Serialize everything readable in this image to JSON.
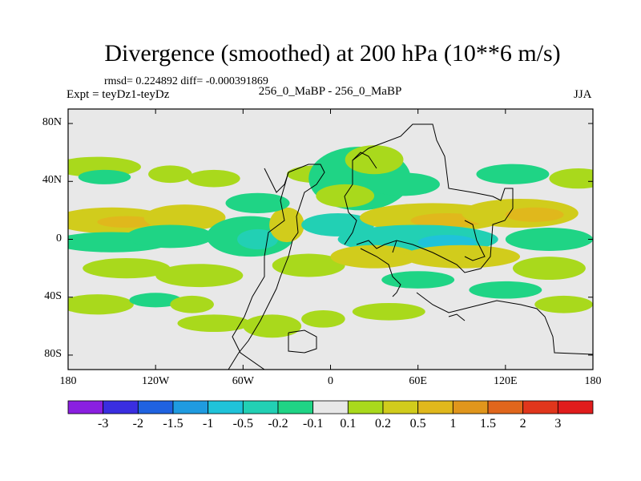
{
  "chart_data": {
    "type": "contour-map",
    "title": "Divergence (smoothed) at 200 hPa (10**6 m/s)",
    "stats_label": "rmsd= 0.224892 diff= -0.000391869",
    "expt_label": "Expt = teyDz1-teyDz",
    "case_label": "256_0_MaBP - 256_0_MaBP",
    "season": "JJA",
    "x_ticks": [
      "180",
      "120W",
      "60W",
      "0",
      "60E",
      "120E",
      "180"
    ],
    "y_ticks": [
      "80N",
      "40N",
      "0",
      "40S",
      "80S"
    ],
    "xlim": [
      -180,
      180
    ],
    "ylim": [
      -90,
      90
    ],
    "colorbar_levels": [
      "-3",
      "-2",
      "-1.5",
      "-1",
      "-0.5",
      "-0.2",
      "-0.1",
      "0.1",
      "0.2",
      "0.5",
      "1",
      "1.5",
      "2",
      "3"
    ],
    "colorbar_colors": [
      "#8a1fe0",
      "#3a2ee0",
      "#1f62e0",
      "#1f9be0",
      "#1fc3d9",
      "#22d0b4",
      "#1fd485",
      "#e8e8e8",
      "#a9d91c",
      "#d1cc1c",
      "#e0b81c",
      "#e0961c",
      "#e0661c",
      "#e0361c",
      "#e01c1c"
    ],
    "field_blobs": [
      {
        "lon": -160,
        "lat": 50,
        "rx": 30,
        "ry": 7,
        "value": 0.15
      },
      {
        "lon": -155,
        "lat": 43,
        "rx": 18,
        "ry": 5,
        "value": -0.15
      },
      {
        "lon": -110,
        "lat": 45,
        "rx": 15,
        "ry": 6,
        "value": 0.15
      },
      {
        "lon": -150,
        "lat": 13,
        "rx": 40,
        "ry": 9,
        "value": 0.3
      },
      {
        "lon": -140,
        "lat": 12,
        "rx": 20,
        "ry": 4,
        "value": 0.6
      },
      {
        "lon": -100,
        "lat": 15,
        "rx": 28,
        "ry": 9,
        "value": 0.3
      },
      {
        "lon": -150,
        "lat": -2,
        "rx": 40,
        "ry": 7,
        "value": -0.15
      },
      {
        "lon": -110,
        "lat": 2,
        "rx": 30,
        "ry": 8,
        "value": -0.15
      },
      {
        "lon": -55,
        "lat": 2,
        "rx": 30,
        "ry": 14,
        "value": -0.15
      },
      {
        "lon": -50,
        "lat": 0,
        "rx": 14,
        "ry": 7,
        "value": -0.35
      },
      {
        "lon": -30,
        "lat": 10,
        "rx": 12,
        "ry": 12,
        "value": 0.3
      },
      {
        "lon": -140,
        "lat": -20,
        "rx": 30,
        "ry": 7,
        "value": 0.15
      },
      {
        "lon": -90,
        "lat": -25,
        "rx": 30,
        "ry": 8,
        "value": 0.15
      },
      {
        "lon": -160,
        "lat": -45,
        "rx": 25,
        "ry": 7,
        "value": 0.15
      },
      {
        "lon": -120,
        "lat": -42,
        "rx": 18,
        "ry": 5,
        "value": -0.15
      },
      {
        "lon": -95,
        "lat": -45,
        "rx": 15,
        "ry": 6,
        "value": 0.15
      },
      {
        "lon": -80,
        "lat": -58,
        "rx": 25,
        "ry": 6,
        "value": 0.15
      },
      {
        "lon": -40,
        "lat": -60,
        "rx": 20,
        "ry": 8,
        "value": 0.15
      },
      {
        "lon": -15,
        "lat": -18,
        "rx": 25,
        "ry": 8,
        "value": 0.2
      },
      {
        "lon": -5,
        "lat": -55,
        "rx": 15,
        "ry": 6,
        "value": 0.15
      },
      {
        "lon": -80,
        "lat": 42,
        "rx": 18,
        "ry": 6,
        "value": 0.15
      },
      {
        "lon": -50,
        "lat": 25,
        "rx": 22,
        "ry": 7,
        "value": -0.15
      },
      {
        "lon": -10,
        "lat": 45,
        "rx": 20,
        "ry": 6,
        "value": 0.15
      },
      {
        "lon": 20,
        "lat": 42,
        "rx": 35,
        "ry": 22,
        "value": -0.15
      },
      {
        "lon": 30,
        "lat": 55,
        "rx": 20,
        "ry": 10,
        "value": 0.15
      },
      {
        "lon": 10,
        "lat": 30,
        "rx": 20,
        "ry": 8,
        "value": 0.2
      },
      {
        "lon": 50,
        "lat": 38,
        "rx": 25,
        "ry": 8,
        "value": -0.15
      },
      {
        "lon": 5,
        "lat": 10,
        "rx": 25,
        "ry": 8,
        "value": -0.25
      },
      {
        "lon": 70,
        "lat": 15,
        "rx": 50,
        "ry": 10,
        "value": 0.3
      },
      {
        "lon": 80,
        "lat": 13,
        "rx": 25,
        "ry": 5,
        "value": 0.6
      },
      {
        "lon": 130,
        "lat": 18,
        "rx": 40,
        "ry": 10,
        "value": 0.3
      },
      {
        "lon": 140,
        "lat": 17,
        "rx": 20,
        "ry": 5,
        "value": 0.6
      },
      {
        "lon": 60,
        "lat": 0,
        "rx": 55,
        "ry": 10,
        "value": -0.25
      },
      {
        "lon": 80,
        "lat": -2,
        "rx": 20,
        "ry": 5,
        "value": -0.6
      },
      {
        "lon": 150,
        "lat": 0,
        "rx": 30,
        "ry": 8,
        "value": -0.15
      },
      {
        "lon": 30,
        "lat": -12,
        "rx": 30,
        "ry": 8,
        "value": 0.3
      },
      {
        "lon": 90,
        "lat": -12,
        "rx": 40,
        "ry": 8,
        "value": 0.3
      },
      {
        "lon": 150,
        "lat": -20,
        "rx": 25,
        "ry": 8,
        "value": 0.15
      },
      {
        "lon": 60,
        "lat": -28,
        "rx": 25,
        "ry": 6,
        "value": -0.15
      },
      {
        "lon": 120,
        "lat": -35,
        "rx": 25,
        "ry": 6,
        "value": -0.15
      },
      {
        "lon": 40,
        "lat": -50,
        "rx": 25,
        "ry": 6,
        "value": 0.15
      },
      {
        "lon": 160,
        "lat": -45,
        "rx": 20,
        "ry": 6,
        "value": 0.15
      },
      {
        "lon": 170,
        "lat": 42,
        "rx": 20,
        "ry": 7,
        "value": 0.15
      },
      {
        "lon": 125,
        "lat": 45,
        "rx": 25,
        "ry": 7,
        "value": -0.15
      }
    ]
  }
}
